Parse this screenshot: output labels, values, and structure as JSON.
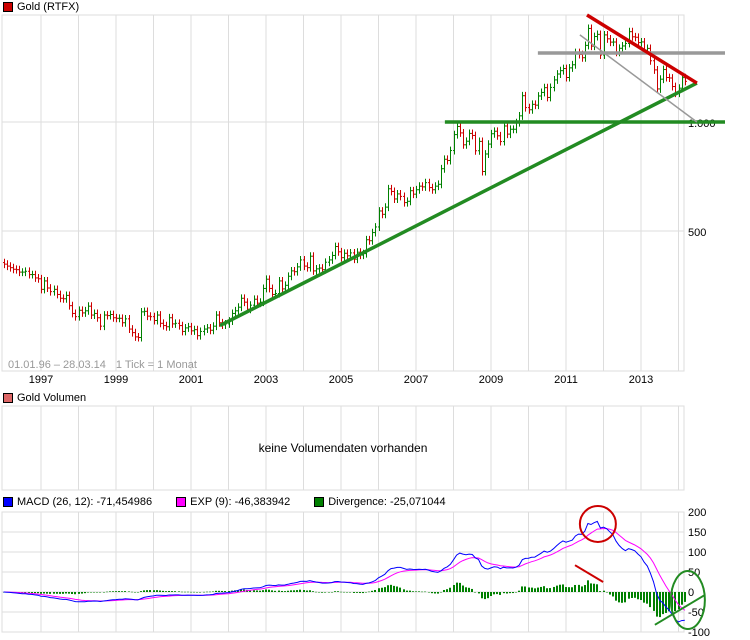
{
  "price_panel": {
    "title": "Gold (RTFX)",
    "title_color": "#cc0000",
    "range_text": "01.01.96 – 28.03.14",
    "tick_text": "1 Tick = 1 Monat"
  },
  "volume_panel": {
    "title": "Gold Volumen",
    "title_color": "#dd6666",
    "message": "keine Volumendaten vorhanden"
  },
  "macd_panel": {
    "legend": [
      {
        "label": "MACD (26, 12): -71,454986",
        "color": "#0000ff"
      },
      {
        "label": "EXP (9): -46,383942",
        "color": "#ff00ff"
      },
      {
        "label": "Divergence: -25,071044",
        "color": "#008000"
      }
    ]
  },
  "chart_data": [
    {
      "type": "ohlc",
      "title": "Gold (RTFX)",
      "interval": "monthly",
      "start": "1996-01",
      "end": "2014-03",
      "y_scale": "log",
      "y_ticks": [
        {
          "value": 500,
          "label": "500"
        },
        {
          "value": 1000,
          "label": "1.000"
        }
      ],
      "x_ticks": [
        "1997",
        "1999",
        "2001",
        "2003",
        "2005",
        "2007",
        "2009",
        "2011",
        "2013"
      ],
      "grid": true,
      "up_color": "#008000",
      "down_color": "#cc0000",
      "closes": [
        405,
        400,
        396,
        392,
        391,
        385,
        385,
        387,
        379,
        379,
        371,
        369,
        345,
        364,
        348,
        340,
        345,
        334,
        326,
        325,
        332,
        311,
        296,
        290,
        302,
        297,
        301,
        310,
        293,
        296,
        288,
        273,
        293,
        292,
        294,
        288,
        287,
        287,
        279,
        286,
        268,
        262,
        255,
        254,
        299,
        300,
        291,
        290,
        283,
        293,
        278,
        274,
        272,
        288,
        277,
        278,
        274,
        264,
        270,
        272,
        265,
        267,
        257,
        264,
        268,
        270,
        266,
        273,
        293,
        279,
        275,
        277,
        282,
        296,
        301,
        308,
        326,
        318,
        304,
        312,
        324,
        316,
        318,
        347,
        368,
        347,
        334,
        336,
        364,
        346,
        354,
        375,
        388,
        386,
        398,
        416,
        400,
        396,
        426,
        388,
        393,
        395,
        391,
        410,
        416,
        428,
        453,
        438,
        422,
        434,
        427,
        435,
        418,
        437,
        429,
        433,
        473,
        470,
        495,
        513,
        568,
        556,
        582,
        654,
        643,
        613,
        633,
        623,
        599,
        604,
        646,
        632,
        650,
        665,
        662,
        680,
        659,
        650,
        665,
        673,
        743,
        789,
        783,
        834,
        923,
        972,
        933,
        865,
        885,
        930,
        918,
        833,
        884,
        730,
        816,
        869,
        928,
        943,
        916,
        883,
        975,
        926,
        955,
        955,
        996,
        1040,
        1182,
        1096,
        1081,
        1119,
        1113,
        1180,
        1207,
        1244,
        1169,
        1246,
        1307,
        1357,
        1386,
        1405,
        1327,
        1411,
        1439,
        1556,
        1536,
        1505,
        1628,
        1813,
        1620,
        1722,
        1746,
        1531,
        1740,
        1697,
        1662,
        1663,
        1558,
        1598,
        1622,
        1648,
        1776,
        1719,
        1714,
        1657,
        1664,
        1578,
        1597,
        1476,
        1393,
        1234,
        1313,
        1396,
        1327,
        1323,
        1253,
        1201,
        1240,
        1326,
        1295
      ],
      "annotations": [
        {
          "kind": "line",
          "color": "#228b22",
          "from": [
            2001.77,
            274
          ],
          "to": [
            2014.49,
            1281
          ]
        },
        {
          "kind": "line",
          "color": "#228b22",
          "from": [
            2007.77,
            1000
          ],
          "to": [
            2015.24,
            1000
          ]
        },
        {
          "kind": "line",
          "color": "#999999",
          "from": [
            2010.25,
            1551
          ],
          "to": [
            2015.24,
            1551
          ]
        },
        {
          "kind": "thin-line",
          "color": "#999999",
          "from": [
            2011.37,
            1740
          ],
          "to": [
            2014.49,
            1000
          ]
        },
        {
          "kind": "line",
          "color": "#cc0000",
          "from": [
            2011.56,
            1975
          ],
          "to": [
            2014.49,
            1281
          ]
        }
      ]
    },
    {
      "type": "macd",
      "fast": 12,
      "slow": 26,
      "signal": 9,
      "ylim": [
        -100,
        200
      ],
      "y_ticks": [
        200,
        150,
        100,
        50,
        0,
        -50,
        -100
      ],
      "grid": true,
      "series": [
        {
          "name": "MACD (26, 12)",
          "color": "#0000ff",
          "last": -71.454986
        },
        {
          "name": "EXP (9)",
          "color": "#ff00ff",
          "last": -46.383942
        },
        {
          "name": "Divergence",
          "color": "#008000",
          "last": -25.071044
        }
      ],
      "annotations": [
        {
          "kind": "circle",
          "color": "#cc0000",
          "center": [
            2011.85,
            170
          ]
        },
        {
          "kind": "line",
          "color": "#cc0000",
          "from": [
            2011.24,
            67
          ],
          "to": [
            2011.99,
            25
          ]
        },
        {
          "kind": "ellipse",
          "color": "#228b22",
          "center": [
            2014.25,
            -20
          ]
        },
        {
          "kind": "line",
          "color": "#228b22",
          "from": [
            2013.37,
            -82
          ],
          "to": [
            2014.71,
            -7
          ]
        }
      ]
    }
  ]
}
